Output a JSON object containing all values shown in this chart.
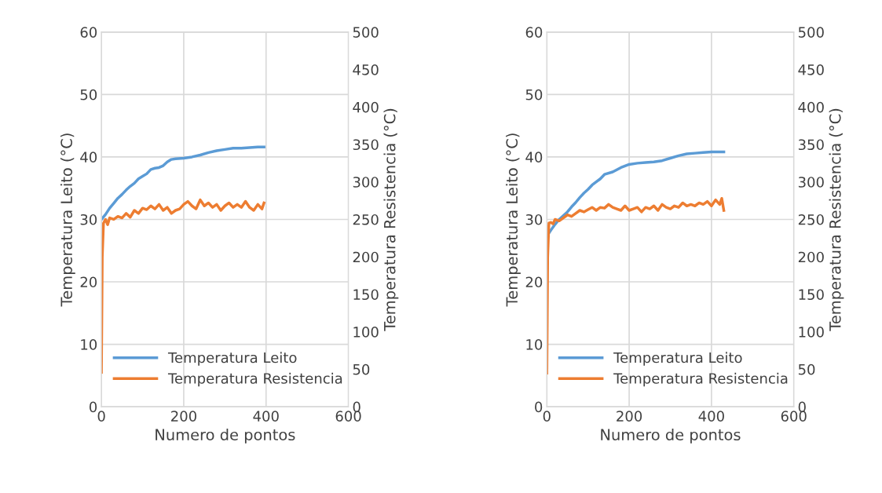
{
  "chart_data": [
    {
      "type": "line",
      "xlabel": "Numero de pontos",
      "ylabel": "Temperatura Leito (°C)",
      "y2label": "Temperatura Resistencia (°C)",
      "xlim": [
        0,
        600
      ],
      "xticks": [
        0,
        200,
        400,
        600
      ],
      "ylim": [
        0,
        60
      ],
      "yticks": [
        0,
        10,
        20,
        30,
        40,
        50,
        60
      ],
      "y2lim": [
        0,
        500
      ],
      "y2ticks": [
        0,
        50,
        100,
        150,
        200,
        250,
        300,
        350,
        400,
        450,
        500
      ],
      "grid": true,
      "legend": "bottom left",
      "marker": "none",
      "series": [
        {
          "name": "Temperatura Leito",
          "color": "#5b9bd5",
          "x": [
            0,
            10,
            20,
            30,
            40,
            50,
            60,
            70,
            80,
            90,
            100,
            110,
            120,
            130,
            140,
            150,
            160,
            170,
            180,
            200,
            220,
            240,
            260,
            280,
            300,
            320,
            340,
            360,
            380,
            395
          ],
          "values": [
            30,
            30.8,
            31.8,
            32.6,
            33.4,
            34.0,
            34.7,
            35.3,
            35.8,
            36.5,
            36.9,
            37.3,
            38.0,
            38.2,
            38.3,
            38.6,
            39.2,
            39.6,
            39.7,
            39.8,
            40.0,
            40.3,
            40.7,
            41.0,
            41.2,
            41.4,
            41.4,
            41.5,
            41.6,
            41.6
          ]
        },
        {
          "name": "Temperatura Resistencia",
          "color": "#ed7d31",
          "axis": "y2",
          "x": [
            0,
            2,
            5,
            10,
            15,
            20,
            30,
            40,
            50,
            60,
            70,
            80,
            90,
            100,
            110,
            120,
            130,
            140,
            150,
            160,
            170,
            180,
            190,
            200,
            210,
            220,
            230,
            240,
            250,
            260,
            270,
            280,
            290,
            300,
            310,
            320,
            330,
            340,
            350,
            360,
            370,
            380,
            390,
            395
          ],
          "values": [
            46,
            200,
            245,
            250,
            243,
            252,
            250,
            254,
            252,
            258,
            253,
            262,
            258,
            265,
            263,
            268,
            264,
            270,
            262,
            266,
            258,
            262,
            264,
            270,
            274,
            268,
            264,
            276,
            268,
            272,
            266,
            270,
            262,
            268,
            272,
            266,
            270,
            266,
            274,
            266,
            262,
            270,
            264,
            272
          ]
        }
      ]
    },
    {
      "type": "line",
      "xlabel": "Numero de pontos",
      "ylabel": "Temperatura Leito (°C)",
      "y2label": "Temperatura Resistencia (°C)",
      "xlim": [
        0,
        600
      ],
      "xticks": [
        0,
        200,
        400,
        600
      ],
      "ylim": [
        0,
        60
      ],
      "yticks": [
        0,
        10,
        20,
        30,
        40,
        50,
        60
      ],
      "y2lim": [
        0,
        500
      ],
      "y2ticks": [
        0,
        50,
        100,
        150,
        200,
        250,
        300,
        350,
        400,
        450,
        500
      ],
      "grid": true,
      "legend": "bottom left",
      "marker": "none",
      "series": [
        {
          "name": "Temperatura Leito",
          "color": "#5b9bd5",
          "x": [
            0,
            10,
            20,
            30,
            40,
            50,
            60,
            70,
            80,
            90,
            100,
            110,
            120,
            130,
            140,
            160,
            180,
            200,
            220,
            240,
            260,
            280,
            300,
            320,
            340,
            360,
            380,
            400,
            430
          ],
          "values": [
            27.3,
            28.3,
            29.2,
            30.0,
            30.6,
            31.2,
            32.0,
            32.7,
            33.5,
            34.2,
            34.8,
            35.5,
            36.0,
            36.5,
            37.2,
            37.6,
            38.3,
            38.8,
            39.0,
            39.1,
            39.2,
            39.4,
            39.8,
            40.2,
            40.5,
            40.6,
            40.7,
            40.8,
            40.8
          ]
        },
        {
          "name": "Temperatura Resistencia",
          "color": "#ed7d31",
          "axis": "y2",
          "x": [
            0,
            2,
            5,
            10,
            15,
            20,
            30,
            40,
            50,
            60,
            70,
            80,
            90,
            100,
            110,
            120,
            130,
            140,
            150,
            160,
            170,
            180,
            190,
            200,
            210,
            220,
            230,
            240,
            250,
            260,
            270,
            280,
            290,
            300,
            310,
            320,
            330,
            340,
            350,
            360,
            370,
            380,
            390,
            400,
            410,
            420,
            425,
            430
          ],
          "values": [
            45,
            200,
            245,
            246,
            244,
            250,
            248,
            252,
            256,
            254,
            258,
            262,
            260,
            263,
            266,
            262,
            266,
            265,
            270,
            266,
            264,
            262,
            268,
            262,
            264,
            266,
            260,
            266,
            264,
            268,
            262,
            270,
            266,
            264,
            268,
            266,
            272,
            268,
            270,
            268,
            272,
            270,
            274,
            268,
            276,
            270,
            278,
            262
          ]
        }
      ]
    }
  ]
}
